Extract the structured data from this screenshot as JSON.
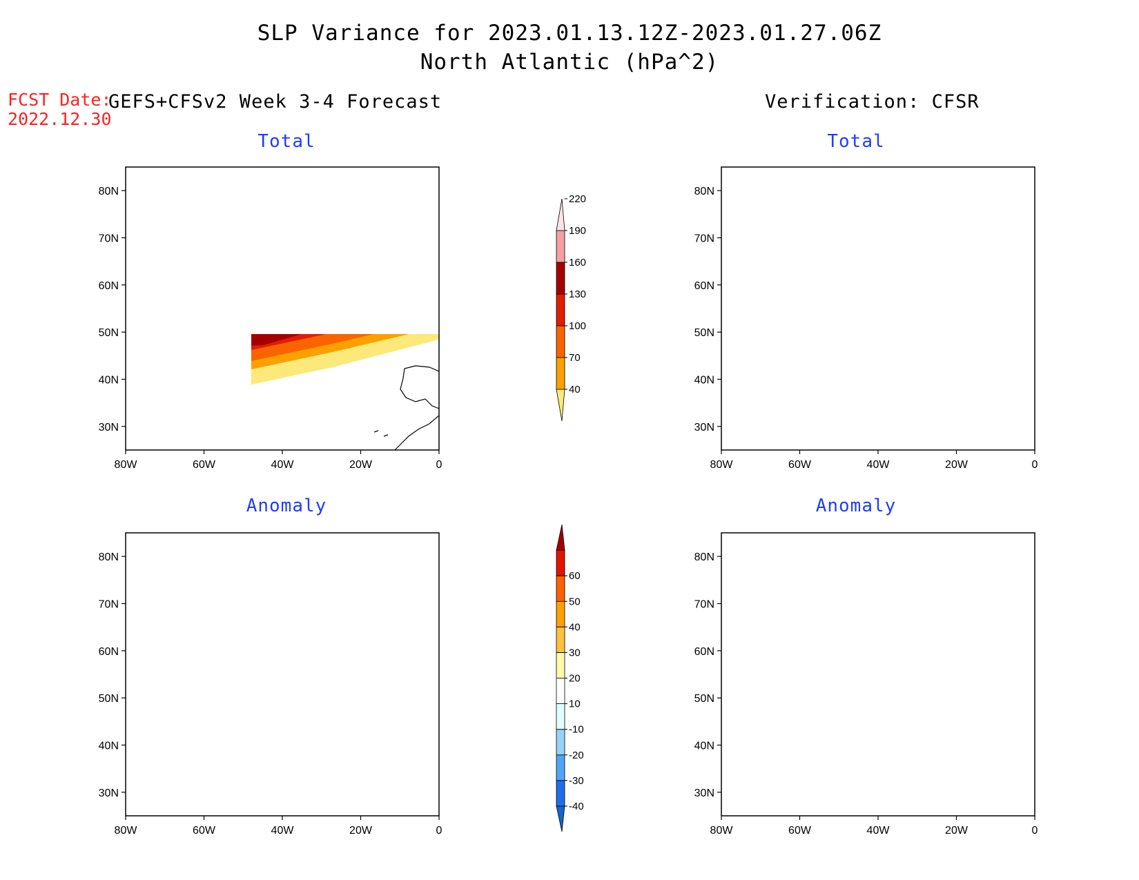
{
  "title": {
    "line1": "SLP Variance for 2023.01.13.12Z-2023.01.27.06Z",
    "line2": "North Atlantic (hPa^2)"
  },
  "forecast": {
    "date_label": "FCST Date:",
    "date_value": "2022.12.30",
    "model_header": "GEFS+CFSv2 Week 3-4 Forecast",
    "verification_header": "Verification: CFSR"
  },
  "panels": {
    "forecast_total": {
      "title": "Total"
    },
    "verif_total": {
      "title": "Total"
    },
    "forecast_anomaly": {
      "title": "Anomaly"
    },
    "verif_anomaly": {
      "title": "Anomaly"
    }
  },
  "axes": {
    "lon_ticks": [
      "80W",
      "60W",
      "40W",
      "20W",
      "0"
    ],
    "lat_ticks": [
      "80N",
      "70N",
      "60N",
      "50N",
      "40N",
      "30N"
    ],
    "lon_range": [
      -80,
      0
    ],
    "lat_range": [
      25,
      85
    ]
  },
  "colorbars": {
    "total": {
      "levels": [
        "40",
        "70",
        "100",
        "130",
        "160",
        "190",
        "220"
      ],
      "colors": [
        "#fde97a",
        "#fca000",
        "#fa6400",
        "#e01e00",
        "#a50000",
        "#f4a0a0",
        "#fde4e4"
      ]
    },
    "anomaly": {
      "levels": [
        "-40",
        "-30",
        "-20",
        "-10",
        "10",
        "20",
        "30",
        "40",
        "50",
        "60"
      ],
      "colors": [
        "#1464d2",
        "#1e6eeb",
        "#50a5f5",
        "#96d2fa",
        "#e1ffff",
        "#ffffff",
        "#fffaaa",
        "#ffc03c",
        "#ffa000",
        "#ff6000",
        "#e11400",
        "#a50000"
      ]
    }
  },
  "chart_data": [
    {
      "type": "heatmap",
      "title": "Total",
      "description_source": "GEFS+CFSv2 Week 3-4 Forecast",
      "xlim": [
        -80,
        0
      ],
      "ylim": [
        25,
        85
      ],
      "color_levels": [
        40,
        70,
        100,
        130,
        160,
        190,
        220
      ]
    },
    {
      "type": "heatmap",
      "title": "Total",
      "description_source": "Verification: CFSR",
      "xlim": [
        -80,
        0
      ],
      "ylim": [
        25,
        85
      ],
      "color_levels": [
        40,
        70,
        100,
        130,
        160,
        190,
        220
      ]
    },
    {
      "type": "heatmap",
      "title": "Anomaly",
      "description_source": "GEFS+CFSv2 Week 3-4 Forecast",
      "xlim": [
        -80,
        0
      ],
      "ylim": [
        25,
        85
      ],
      "color_levels": [
        -40,
        -30,
        -20,
        -10,
        10,
        20,
        30,
        40,
        50,
        60
      ]
    },
    {
      "type": "heatmap",
      "title": "Anomaly",
      "description_source": "Verification: CFSR",
      "xlim": [
        -80,
        0
      ],
      "ylim": [
        25,
        85
      ],
      "color_levels": [
        -40,
        -30,
        -20,
        -10,
        10,
        20,
        30,
        40,
        50,
        60
      ]
    }
  ]
}
